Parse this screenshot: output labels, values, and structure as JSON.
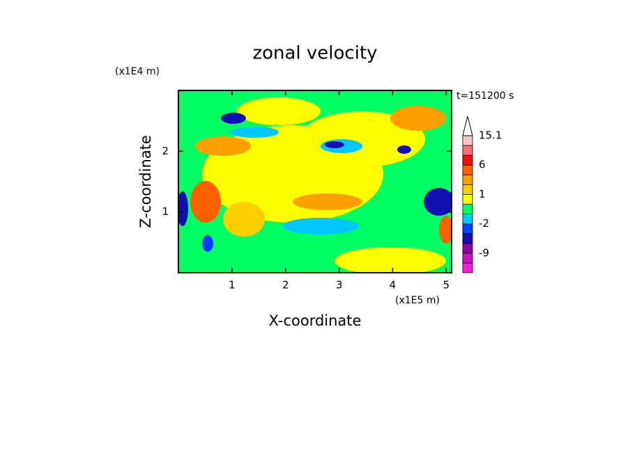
{
  "chart_data": {
    "type": "contour",
    "title": "zonal velocity",
    "x_label": "X-coordinate",
    "y_label": "Z-coordinate",
    "x_unit": "(x1E5 m)",
    "y_unit": "(x1E4 m)",
    "time_label": "t=151200 s",
    "xlim": [
      0,
      5.1
    ],
    "xticks": [
      1,
      2,
      3,
      4,
      5
    ],
    "ylim": [
      0,
      3.0
    ],
    "yticks": [
      1,
      2
    ],
    "colorbar_levels": [
      -12,
      -9,
      -6,
      -3,
      -2,
      -1,
      0,
      1,
      2,
      4,
      6,
      9,
      12,
      15.1
    ],
    "colorbar_colors": [
      "#ff1ad9",
      "#d010c0",
      "#9000a8",
      "#1010b0",
      "#0040ff",
      "#00c8ff",
      "#00ff60",
      "#ffff00",
      "#ffd000",
      "#ffa000",
      "#ff6000",
      "#ee1010",
      "#ff7070",
      "#ffc0c8"
    ],
    "colorbar_ticks": [
      -9,
      -2,
      1,
      6,
      15.1
    ]
  }
}
